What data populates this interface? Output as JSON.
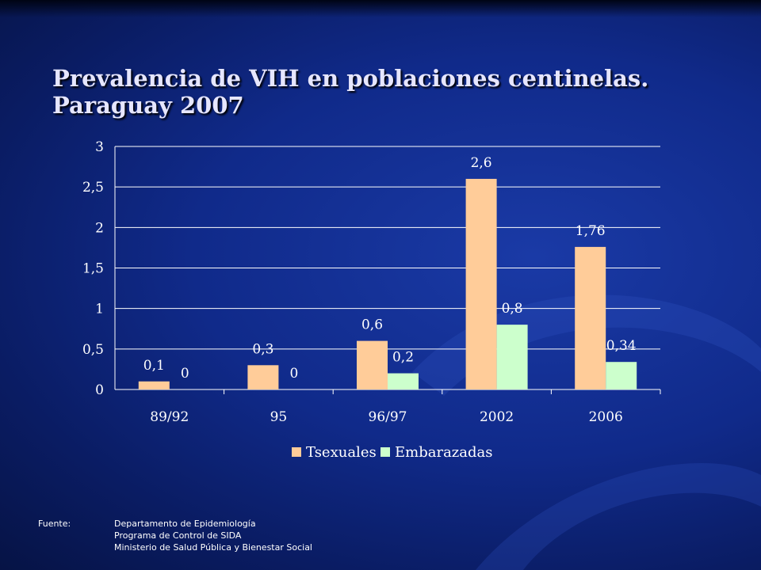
{
  "title": {
    "line1": "Prevalencia de VIH en poblaciones centinelas.",
    "line2": "Paraguay 2007"
  },
  "colors": {
    "bar_tsexuales": "#ffcc99",
    "bar_embarazadas": "#ccffcc",
    "gridline": "#ffffff",
    "text": "#ffffff"
  },
  "chart_data": {
    "type": "bar",
    "categories": [
      "89/92",
      "95",
      "96/97",
      "2002",
      "2006"
    ],
    "series": [
      {
        "name": "Tsexuales",
        "values": [
          0.1,
          0.3,
          0.6,
          2.6,
          1.76
        ],
        "labels": [
          "0,1",
          "0,3",
          "0,6",
          "2,6",
          "1,76"
        ]
      },
      {
        "name": "Embarazadas",
        "values": [
          0,
          0,
          0.2,
          0.8,
          0.34
        ],
        "labels": [
          "0",
          "0",
          "0,2",
          "0,8",
          "0,34"
        ]
      }
    ],
    "yticks": [
      "0",
      "0,5",
      "1",
      "1,5",
      "2",
      "2,5",
      "3"
    ],
    "ylim": [
      0,
      3
    ],
    "grid": true,
    "legend": "bottom"
  },
  "source": {
    "key": "Fuente:",
    "lines": [
      "Departamento de Epidemiología",
      "Programa de Control  de SIDA",
      "Ministerio de Salud Pública y Bienestar Social"
    ]
  }
}
